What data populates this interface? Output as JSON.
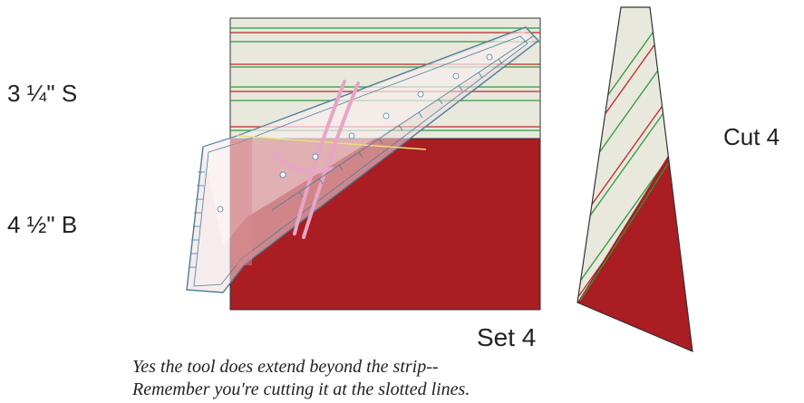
{
  "strip_top_label": "3 ¼\" S",
  "strip_bottom_label": "4 ½\" B",
  "cut_label": "Cut 4",
  "set_label": "Set 4",
  "note_line1": "Yes the tool does extend beyond the strip--",
  "note_line2": "Remember you're cutting it at the slotted lines.",
  "colors": {
    "cream": "#e9e8dd",
    "red": "#a91d23",
    "stripe_red": "#c0262c",
    "stripe_green": "#2f9a3a",
    "ruler_edge": "#4a7f99",
    "ruler_pink": "#e7a6c6",
    "ruler_yellow": "#e6e27a"
  }
}
